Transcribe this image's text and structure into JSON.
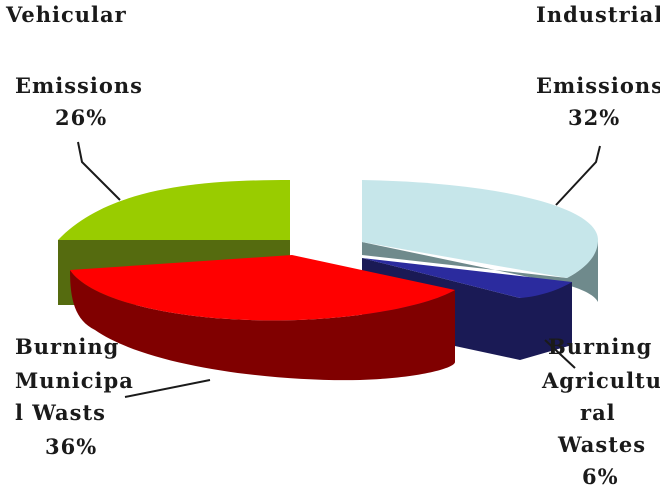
{
  "chart_data": {
    "type": "pie",
    "style": "3d-exploded",
    "categories": [
      "Vehicular Emissions",
      "Industrial Emissions",
      "Burning Agricultural Wastes",
      "Burning Municipal Wasts"
    ],
    "values": [
      26,
      32,
      6,
      36
    ],
    "unit": "%",
    "colors": {
      "vehicular": "#99cc00",
      "industrial": "#c6e6ea",
      "agricultural": "#2b2b9e",
      "municipal": "#ff0000"
    },
    "labels": {
      "vehicular": [
        "Vehicular",
        "Emissions",
        "26%"
      ],
      "industrial": [
        "Industrial",
        "Emissions",
        "32%"
      ],
      "municipal": [
        "Burning",
        "Municipa",
        "l Wasts",
        "36%"
      ],
      "agricultural": [
        "Burning",
        "Agricultu",
        "ral",
        "Wastes",
        "6%"
      ]
    },
    "legend": "none"
  }
}
